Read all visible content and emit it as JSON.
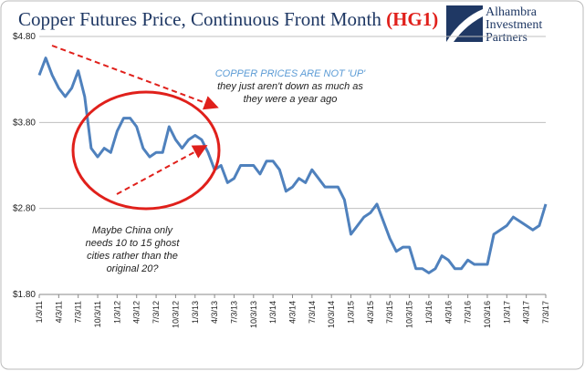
{
  "chart_data": {
    "type": "line",
    "title": "Copper Futures Price, Continuous Front Month",
    "ticker": "(HG1)",
    "logo": [
      "Alhambra",
      "Investment",
      "Partners"
    ],
    "annotations": [
      {
        "lines": [
          "COPPER PRICES ARE NOT 'UP'",
          "they just aren't down as much as",
          "they were a year ago"
        ]
      },
      {
        "lines": [
          "Maybe China only",
          "needs 10 to 15 ghost",
          "cities rather than the",
          "original 20?"
        ]
      }
    ],
    "categories": [
      "1/3/11",
      null,
      null,
      "4/3/11",
      null,
      null,
      "7/3/11",
      null,
      null,
      "10/3/11",
      null,
      null,
      "1/3/12",
      null,
      null,
      "4/3/12",
      null,
      null,
      "7/3/12",
      null,
      null,
      "10/3/12",
      null,
      null,
      "1/3/13",
      null,
      null,
      "4/3/13",
      null,
      null,
      "7/3/13",
      null,
      null,
      "10/3/13",
      null,
      null,
      "1/3/14",
      null,
      null,
      "4/3/14",
      null,
      null,
      "7/3/14",
      null,
      null,
      "10/3/14",
      null,
      null,
      "1/3/15",
      null,
      null,
      "4/3/15",
      null,
      null,
      "7/3/15",
      null,
      null,
      "10/3/15",
      null,
      null,
      "1/3/16",
      null,
      null,
      "4/3/16",
      null,
      null,
      "7/3/16",
      null,
      null,
      "10/3/16",
      null,
      null,
      "1/3/17",
      null,
      null,
      "4/3/17",
      null,
      null,
      "7/3/17"
    ],
    "series": [
      {
        "name": "HG1",
        "color": "#4f81bd",
        "values": [
          4.35,
          4.55,
          4.35,
          4.2,
          4.1,
          4.2,
          4.4,
          4.1,
          3.5,
          3.4,
          3.5,
          3.45,
          3.7,
          3.85,
          3.85,
          3.75,
          3.5,
          3.4,
          3.45,
          3.45,
          3.75,
          3.6,
          3.5,
          3.6,
          3.65,
          3.6,
          3.45,
          3.25,
          3.3,
          3.1,
          3.15,
          3.3,
          3.3,
          3.3,
          3.2,
          3.35,
          3.35,
          3.25,
          3.0,
          3.05,
          3.15,
          3.1,
          3.25,
          3.15,
          3.05,
          3.05,
          3.05,
          2.9,
          2.5,
          2.6,
          2.7,
          2.75,
          2.85,
          2.65,
          2.45,
          2.3,
          2.35,
          2.35,
          2.1,
          2.1,
          2.05,
          2.1,
          2.25,
          2.2,
          2.1,
          2.1,
          2.2,
          2.15,
          2.15,
          2.15,
          2.5,
          2.55,
          2.6,
          2.7,
          2.65,
          2.6,
          2.55,
          2.6,
          2.85
        ]
      }
    ],
    "ylim": [
      1.8,
      4.8
    ],
    "yticks": [
      {
        "value": 1.8,
        "label": "$1.80"
      },
      {
        "value": 2.8,
        "label": "$2.80"
      },
      {
        "value": 3.8,
        "label": "$3.80"
      },
      {
        "value": 4.8,
        "label": "$4.80"
      }
    ],
    "grid": true
  }
}
